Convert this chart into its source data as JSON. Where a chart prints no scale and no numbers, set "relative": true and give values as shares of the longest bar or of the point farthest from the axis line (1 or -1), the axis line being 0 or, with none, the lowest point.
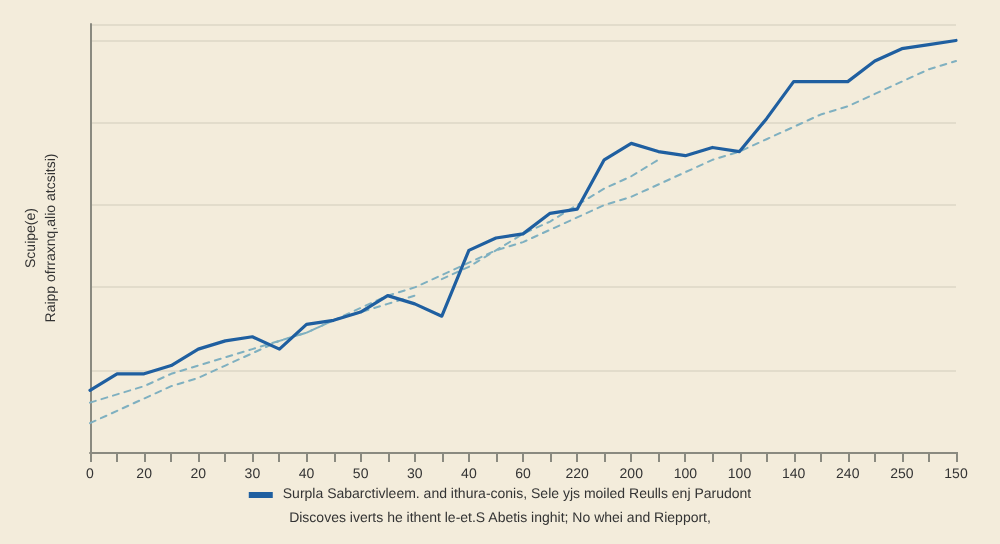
{
  "chart_data": {
    "type": "line",
    "relative": true,
    "ylabel": "Scuipe(e)\nRaipp ofrraxnq,alio atcsitsi)",
    "annotations": [
      "Discoves iverts he ithent le-et.S Abetis inghit; No whei and Riepport,"
    ],
    "categories": [
      "0",
      null,
      "20",
      null,
      "20",
      null,
      "30",
      null,
      "40",
      null,
      "50",
      null,
      "30",
      null,
      "40",
      null,
      "60",
      null,
      "220",
      null,
      "200",
      null,
      "100",
      null,
      "100",
      null,
      "140",
      null,
      "240",
      null,
      "250",
      null,
      "150"
    ],
    "grid": "y",
    "legend": "bottom",
    "marker": "none",
    "series": [
      {
        "name": "Surpla Sabarctivleem. and ithura-conis, Sele yjs moiled Reulls enj Parudont",
        "color": "#1f5fa0",
        "line_style": "solid",
        "values": [
          0.15,
          0.19,
          0.19,
          0.21,
          0.25,
          0.27,
          0.28,
          0.25,
          0.31,
          0.32,
          0.34,
          0.38,
          0.36,
          0.33,
          0.49,
          0.52,
          0.53,
          0.58,
          0.59,
          0.71,
          0.75,
          0.73,
          0.72,
          0.74,
          0.73,
          0.81,
          0.9,
          0.9,
          0.9,
          0.95,
          0.98,
          0.99,
          1
        ]
      },
      {
        "color": "#7fb0c0",
        "line_style": "dashed",
        "values": [
          0.07,
          0.1,
          0.13,
          0.16,
          0.18,
          0.21,
          0.24,
          0.27,
          0.29,
          0.32,
          0.35,
          0.38,
          0.4,
          0.43,
          0.46,
          0.49,
          0.51,
          0.54,
          0.57,
          0.6,
          0.62,
          0.65,
          0.68,
          0.71,
          0.73,
          0.76,
          0.79,
          0.82,
          0.84,
          0.87,
          0.9,
          0.93,
          0.95
        ]
      },
      {
        "color": "#7fb0c0",
        "line_style": "dashed",
        "values": [
          0.12,
          0.14,
          0.16,
          0.19,
          0.21,
          0.23,
          0.25,
          0.27,
          0.29,
          0.32,
          0.34,
          0.36,
          0.38,
          null,
          null,
          null,
          null,
          null,
          null,
          null,
          null,
          null,
          null,
          null,
          null,
          null,
          null,
          null,
          null,
          null,
          null,
          null,
          null
        ]
      },
      {
        "color": "#7fb0c0",
        "line_style": "dashed",
        "values": [
          null,
          null,
          null,
          null,
          null,
          null,
          null,
          null,
          null,
          null,
          null,
          null,
          null,
          0.42,
          0.45,
          0.49,
          0.53,
          0.56,
          0.6,
          0.64,
          0.67,
          0.71,
          null,
          null,
          null,
          null,
          null,
          null,
          null,
          null,
          null,
          null,
          null
        ]
      }
    ]
  }
}
